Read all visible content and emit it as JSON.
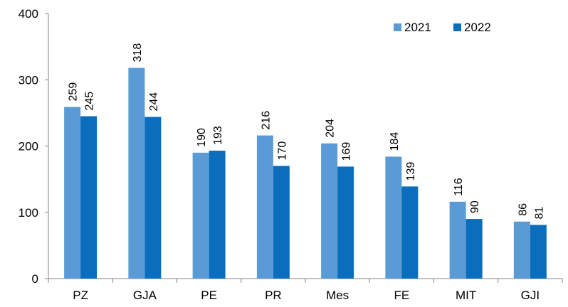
{
  "chart_data": {
    "type": "bar",
    "categories": [
      "PZ",
      "GJA",
      "PE",
      "PR",
      "Mes",
      "FE",
      "MIT",
      "GJI"
    ],
    "series": [
      {
        "name": "2021",
        "color": "#5B9BD5",
        "values": [
          259,
          318,
          190,
          216,
          204,
          184,
          116,
          86
        ]
      },
      {
        "name": "2022",
        "color": "#0A6EBD",
        "values": [
          245,
          244,
          193,
          170,
          169,
          139,
          90,
          81
        ]
      }
    ],
    "ylim": [
      0,
      400
    ],
    "yticks": [
      "0",
      "100",
      "200",
      "300",
      "400"
    ],
    "title": "",
    "xlabel": "",
    "ylabel": "",
    "grid": false,
    "legend_position": "top-right"
  }
}
